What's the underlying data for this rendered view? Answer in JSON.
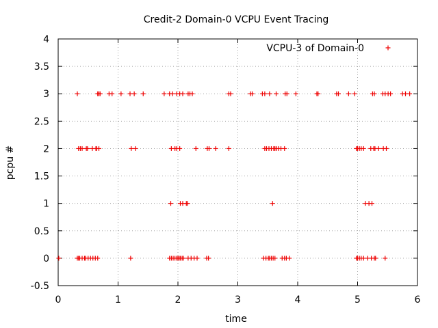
{
  "chart_data": {
    "type": "scatter",
    "title": "Credit-2 Domain-0 VCPU Event Tracing",
    "xlabel": "time",
    "ylabel": "pcpu #",
    "xlim": [
      0,
      6
    ],
    "ylim": [
      -0.5,
      4
    ],
    "xticks": [
      "0",
      "1",
      "2",
      "3",
      "4",
      "5",
      "6"
    ],
    "yticks": [
      "-0.5",
      "0",
      "0.5",
      "1",
      "1.5",
      "2",
      "2.5",
      "3",
      "3.5",
      "4"
    ],
    "grid": true,
    "legend_position": "top-right",
    "marker": "+",
    "series": [
      {
        "name": "VCPU-3 of Domain-0",
        "color": "#ee0000",
        "points": [
          [
            0.32,
            3
          ],
          [
            0.66,
            3
          ],
          [
            0.68,
            3
          ],
          [
            0.7,
            3
          ],
          [
            0.85,
            3
          ],
          [
            0.9,
            3
          ],
          [
            1.05,
            3
          ],
          [
            1.2,
            3
          ],
          [
            1.27,
            3
          ],
          [
            1.42,
            3
          ],
          [
            1.77,
            3
          ],
          [
            1.86,
            3
          ],
          [
            1.91,
            3
          ],
          [
            1.98,
            3
          ],
          [
            2.03,
            3
          ],
          [
            2.08,
            3
          ],
          [
            2.17,
            3
          ],
          [
            2.2,
            3
          ],
          [
            2.24,
            3
          ],
          [
            2.85,
            3
          ],
          [
            2.88,
            3
          ],
          [
            3.21,
            3
          ],
          [
            3.24,
            3
          ],
          [
            3.41,
            3
          ],
          [
            3.45,
            3
          ],
          [
            3.53,
            3
          ],
          [
            3.64,
            3
          ],
          [
            3.79,
            3
          ],
          [
            3.82,
            3
          ],
          [
            3.97,
            3
          ],
          [
            4.32,
            3
          ],
          [
            4.34,
            3
          ],
          [
            4.65,
            3
          ],
          [
            4.68,
            3
          ],
          [
            4.85,
            3
          ],
          [
            4.95,
            3
          ],
          [
            5.25,
            3
          ],
          [
            5.28,
            3
          ],
          [
            5.42,
            3
          ],
          [
            5.46,
            3
          ],
          [
            5.51,
            3
          ],
          [
            5.55,
            3
          ],
          [
            5.75,
            3
          ],
          [
            5.8,
            3
          ],
          [
            5.87,
            3
          ],
          [
            0.34,
            2
          ],
          [
            0.37,
            2
          ],
          [
            0.4,
            2
          ],
          [
            0.47,
            2
          ],
          [
            0.49,
            2
          ],
          [
            0.57,
            2
          ],
          [
            0.63,
            2
          ],
          [
            0.64,
            2
          ],
          [
            0.68,
            2
          ],
          [
            1.22,
            2
          ],
          [
            1.29,
            2
          ],
          [
            1.89,
            2
          ],
          [
            1.95,
            2
          ],
          [
            1.98,
            2
          ],
          [
            2.03,
            2
          ],
          [
            2.3,
            2
          ],
          [
            2.49,
            2
          ],
          [
            2.52,
            2
          ],
          [
            2.63,
            2
          ],
          [
            2.85,
            2
          ],
          [
            3.45,
            2
          ],
          [
            3.48,
            2
          ],
          [
            3.52,
            2
          ],
          [
            3.56,
            2
          ],
          [
            3.6,
            2
          ],
          [
            3.62,
            2
          ],
          [
            3.65,
            2
          ],
          [
            3.68,
            2
          ],
          [
            3.72,
            2
          ],
          [
            3.78,
            2
          ],
          [
            4.98,
            2
          ],
          [
            5.0,
            2
          ],
          [
            5.03,
            2
          ],
          [
            5.06,
            2
          ],
          [
            5.1,
            2
          ],
          [
            5.22,
            2
          ],
          [
            5.27,
            2
          ],
          [
            5.29,
            2
          ],
          [
            5.35,
            2
          ],
          [
            5.43,
            2
          ],
          [
            5.48,
            2
          ],
          [
            1.88,
            1
          ],
          [
            2.04,
            1
          ],
          [
            2.08,
            1
          ],
          [
            2.14,
            1
          ],
          [
            2.16,
            1
          ],
          [
            3.58,
            1
          ],
          [
            5.13,
            1
          ],
          [
            5.19,
            1
          ],
          [
            5.24,
            1
          ],
          [
            0.01,
            0
          ],
          [
            0.32,
            0
          ],
          [
            0.34,
            0
          ],
          [
            0.36,
            0
          ],
          [
            0.4,
            0
          ],
          [
            0.44,
            0
          ],
          [
            0.46,
            0
          ],
          [
            0.5,
            0
          ],
          [
            0.54,
            0
          ],
          [
            0.58,
            0
          ],
          [
            0.62,
            0
          ],
          [
            0.66,
            0
          ],
          [
            1.21,
            0
          ],
          [
            1.86,
            0
          ],
          [
            1.89,
            0
          ],
          [
            1.92,
            0
          ],
          [
            1.95,
            0
          ],
          [
            1.98,
            0
          ],
          [
            2.0,
            0
          ],
          [
            2.02,
            0
          ],
          [
            2.04,
            0
          ],
          [
            2.07,
            0
          ],
          [
            2.09,
            0
          ],
          [
            2.17,
            0
          ],
          [
            2.22,
            0
          ],
          [
            2.27,
            0
          ],
          [
            2.32,
            0
          ],
          [
            2.48,
            0
          ],
          [
            2.51,
            0
          ],
          [
            3.43,
            0
          ],
          [
            3.47,
            0
          ],
          [
            3.51,
            0
          ],
          [
            3.53,
            0
          ],
          [
            3.56,
            0
          ],
          [
            3.59,
            0
          ],
          [
            3.62,
            0
          ],
          [
            3.74,
            0
          ],
          [
            3.78,
            0
          ],
          [
            3.81,
            0
          ],
          [
            3.86,
            0
          ],
          [
            4.98,
            0
          ],
          [
            5.0,
            0
          ],
          [
            5.03,
            0
          ],
          [
            5.06,
            0
          ],
          [
            5.1,
            0
          ],
          [
            5.17,
            0
          ],
          [
            5.23,
            0
          ],
          [
            5.28,
            0
          ],
          [
            5.3,
            0
          ],
          [
            5.46,
            0
          ]
        ]
      }
    ]
  }
}
